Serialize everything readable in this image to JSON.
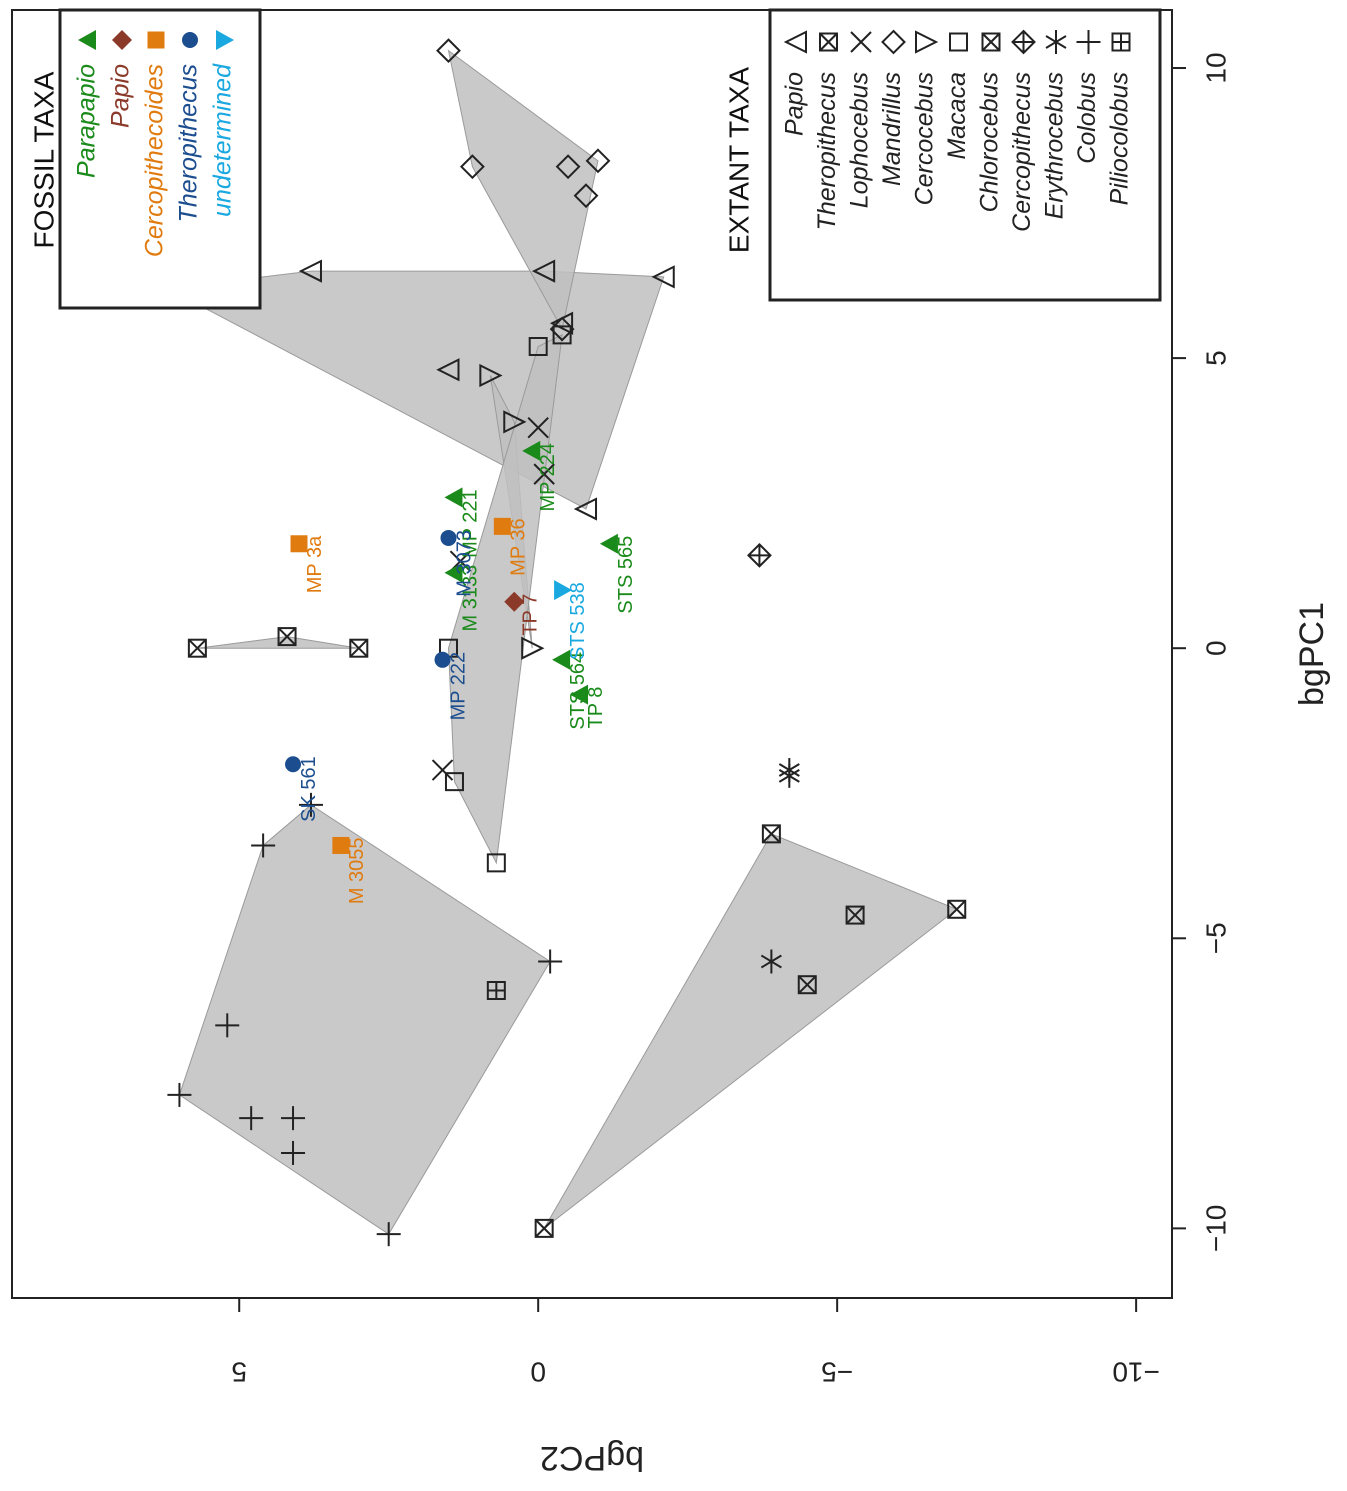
{
  "chart_data": {
    "type": "scatter",
    "xlabel": "bgPC1",
    "ylabel": "bgPC2",
    "xlim": [
      -11.2,
      11
    ],
    "ylim": [
      -10.6,
      8.8
    ],
    "xticks": [
      -10,
      -5,
      0,
      5,
      10
    ],
    "yticks": [
      -10,
      -5,
      0,
      5
    ],
    "grid": false,
    "colors": {
      "Parapapio": "#1a8a1a",
      "Papio": "#8b3a2a",
      "Cercopithecoides": "#e07b10",
      "Theropithecus": "#1c4e8f",
      "undetermined": "#19a8e0",
      "hull": "#c0c0c0",
      "frame": "#222222"
    },
    "fossil_legend": {
      "title": "FOSSIL TAXA",
      "placement": "top-left",
      "entries": [
        {
          "label": "Parapapio",
          "marker": "triangle-up",
          "color": "#1a8a1a"
        },
        {
          "label": "Papio",
          "marker": "diamond",
          "color": "#8b3a2a"
        },
        {
          "label": "Cercopithecoides",
          "marker": "square",
          "color": "#e07b10"
        },
        {
          "label": "Theropithecus",
          "marker": "circle",
          "color": "#1c4e8f"
        },
        {
          "label": "undetermined",
          "marker": "triangle-down",
          "color": "#19a8e0"
        }
      ]
    },
    "extant_legend": {
      "title": "EXTANT TAXA",
      "placement": "top-right",
      "entries": [
        {
          "label": "Papio",
          "marker": "triangle-open"
        },
        {
          "label": "Theropithecus",
          "marker": "square-x"
        },
        {
          "label": "Lophocebus",
          "marker": "x"
        },
        {
          "label": "Mandrillus",
          "marker": "diamond-open"
        },
        {
          "label": "Cercocebus",
          "marker": "triangle-right-open"
        },
        {
          "label": "Macaca",
          "marker": "square-open"
        },
        {
          "label": "Chlorocebus",
          "marker": "square-x"
        },
        {
          "label": "Cercopithecus",
          "marker": "diamond-plus"
        },
        {
          "label": "Erythrocebus",
          "marker": "asterisk"
        },
        {
          "label": "Colobus",
          "marker": "plus"
        },
        {
          "label": "Piliocolobus",
          "marker": "square-plus"
        }
      ]
    },
    "extant_series": [
      {
        "label": "Papio",
        "marker": "triangle-open",
        "hull": true,
        "points": [
          [
            6.2,
            6.2
          ],
          [
            6.5,
            3.8
          ],
          [
            4.8,
            1.5
          ],
          [
            2.4,
            -0.8
          ],
          [
            6.5,
            -0.1
          ],
          [
            6.4,
            -2.1
          ],
          [
            5.6,
            -0.4
          ]
        ]
      },
      {
        "label": "Mandrillus",
        "marker": "diamond-open",
        "hull": true,
        "points": [
          [
            10.3,
            1.5
          ],
          [
            8.3,
            1.1
          ],
          [
            8.3,
            -0.5
          ],
          [
            8.4,
            -1.0
          ],
          [
            7.8,
            -0.8
          ],
          [
            5.5,
            -0.4
          ]
        ]
      },
      {
        "label": "Theropithecus",
        "marker": "square-x",
        "hull": false,
        "points": [
          [
            0,
            5.7
          ],
          [
            0.2,
            4.2
          ],
          [
            0,
            3.0
          ]
        ]
      },
      {
        "label": "Chlorocebus",
        "marker": "square-x",
        "hull": true,
        "points": [
          [
            -4.5,
            -7.0
          ],
          [
            -3.2,
            -3.9
          ],
          [
            -4.6,
            -5.3
          ],
          [
            -5.8,
            -4.5
          ],
          [
            -10,
            -0.1
          ]
        ]
      },
      {
        "label": "Lophocebus",
        "marker": "x",
        "hull": false,
        "points": [
          [
            3.8,
            0
          ],
          [
            3.0,
            -0.1
          ],
          [
            1.5,
            1.3
          ],
          [
            -2.1,
            1.6
          ]
        ]
      },
      {
        "label": "Cercocebus",
        "marker": "triangle-right-open",
        "hull": true,
        "points": [
          [
            4.7,
            0.8
          ],
          [
            3.9,
            0.4
          ],
          [
            0,
            0.1
          ]
        ]
      },
      {
        "label": "Macaca",
        "marker": "square-open",
        "hull": true,
        "points": [
          [
            0,
            1.5
          ],
          [
            -2.3,
            1.4
          ],
          [
            -3.7,
            0.7
          ],
          [
            5.2,
            0
          ],
          [
            5.4,
            -0.4
          ]
        ]
      },
      {
        "label": "Cercopithecus",
        "marker": "diamond-plus",
        "hull": false,
        "points": [
          [
            1.6,
            -3.7
          ]
        ]
      },
      {
        "label": "Erythrocebus",
        "marker": "asterisk",
        "hull": false,
        "points": [
          [
            -2.1,
            -4.2
          ],
          [
            -2.2,
            -4.2
          ],
          [
            -5.4,
            -3.9
          ]
        ]
      },
      {
        "label": "Colobus",
        "marker": "plus",
        "hull": true,
        "points": [
          [
            -2.7,
            3.8
          ],
          [
            -3.4,
            4.6
          ],
          [
            -5.4,
            -0.2
          ],
          [
            -6.5,
            5.2
          ],
          [
            -7.7,
            6.0
          ],
          [
            -8.1,
            4.8
          ],
          [
            -8.1,
            4.1
          ],
          [
            -8.7,
            4.1
          ],
          [
            -10.1,
            2.5
          ]
        ]
      },
      {
        "label": "Piliocolobus",
        "marker": "square-plus",
        "hull": false,
        "points": [
          [
            -5.9,
            0.7
          ]
        ]
      }
    ],
    "fossil_points": [
      {
        "label": "MP 3a",
        "taxon": "Cercopithecoides",
        "x": 1.8,
        "y": 4.0
      },
      {
        "label": "MP 36",
        "taxon": "Cercopithecoides",
        "x": 2.1,
        "y": 0.6
      },
      {
        "label": "M 3055",
        "taxon": "Cercopithecoides",
        "x": -3.4,
        "y": 3.3
      },
      {
        "label": "MP 221",
        "taxon": "Parapapio",
        "x": 2.6,
        "y": 1.4
      },
      {
        "label": "MP 224",
        "taxon": "Parapapio",
        "x": 3.4,
        "y": 0.1
      },
      {
        "label": "M 3133",
        "taxon": "Parapapio",
        "x": 1.3,
        "y": 1.4
      },
      {
        "label": "STS 564",
        "taxon": "Parapapio",
        "x": -0.2,
        "y": -0.4
      },
      {
        "label": "TP 8",
        "taxon": "Parapapio",
        "x": -0.8,
        "y": -0.7
      },
      {
        "label": "STS 565",
        "taxon": "Parapapio",
        "x": 1.8,
        "y": -1.2
      },
      {
        "label": "TP 7",
        "taxon": "Papio",
        "x": 0.8,
        "y": 0.4
      },
      {
        "label": "M 3073",
        "taxon": "Theropithecus",
        "x": 1.9,
        "y": 1.5
      },
      {
        "label": "MP 222",
        "taxon": "Theropithecus",
        "x": -0.2,
        "y": 1.6
      },
      {
        "label": "SK 561",
        "taxon": "Theropithecus",
        "x": -2.0,
        "y": 4.1
      },
      {
        "label": "STS 538",
        "taxon": "undetermined",
        "x": 1.0,
        "y": -0.4
      }
    ]
  }
}
